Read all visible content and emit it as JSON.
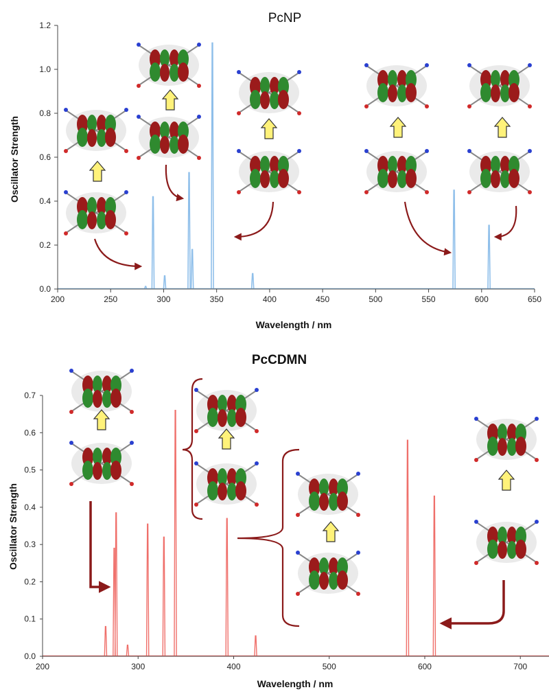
{
  "chart_data": [
    {
      "type": "line",
      "title": "PcNP",
      "xlabel": "Wavelength / nm",
      "ylabel": "Oscillator Strength",
      "xlim": [
        200,
        650
      ],
      "ylim": [
        0,
        1.2
      ],
      "xticks": [
        200,
        250,
        300,
        350,
        400,
        450,
        500,
        550,
        600,
        650
      ],
      "yticks": [
        0.0,
        0.2,
        0.4,
        0.6,
        0.8,
        1.0,
        1.2
      ],
      "yticks_labels": [
        "0.0",
        "0.2",
        "0.4",
        "0.6",
        "0.8",
        "1.0",
        "1.2"
      ],
      "grid": false,
      "color": "#8fbfea",
      "peaks": [
        {
          "x": 283,
          "y": 0.012
        },
        {
          "x": 290,
          "y": 0.42
        },
        {
          "x": 301,
          "y": 0.06
        },
        {
          "x": 324,
          "y": 0.53
        },
        {
          "x": 327,
          "y": 0.18
        },
        {
          "x": 346,
          "y": 1.12
        },
        {
          "x": 384,
          "y": 0.07
        },
        {
          "x": 574,
          "y": 0.45
        },
        {
          "x": 607,
          "y": 0.29
        }
      ],
      "annotations": [
        {
          "type": "orbital-pair",
          "target_x": 290
        },
        {
          "type": "orbital-pair",
          "target_x": 324
        },
        {
          "type": "orbital-pair",
          "target_x": 346
        },
        {
          "type": "orbital-pair",
          "target_x": 574
        },
        {
          "type": "orbital-pair",
          "target_x": 607
        }
      ]
    },
    {
      "type": "line",
      "title": "PcCDMN",
      "xlabel": "Wavelength / nm",
      "ylabel": "Oscillator Strength",
      "xlim": [
        200,
        730
      ],
      "ylim": [
        0,
        0.7
      ],
      "xticks": [
        200,
        300,
        400,
        500,
        600,
        700
      ],
      "yticks": [
        0.0,
        0.1,
        0.2,
        0.3,
        0.4,
        0.5,
        0.6,
        0.7
      ],
      "yticks_labels": [
        "0.0",
        "0.1",
        "0.2",
        "0.3",
        "0.4",
        "0.5",
        "0.6",
        "0.7"
      ],
      "grid": false,
      "color": "#ef6f6a",
      "peaks": [
        {
          "x": 266,
          "y": 0.08
        },
        {
          "x": 275,
          "y": 0.29
        },
        {
          "x": 277,
          "y": 0.385
        },
        {
          "x": 289,
          "y": 0.03
        },
        {
          "x": 310,
          "y": 0.355
        },
        {
          "x": 327,
          "y": 0.32
        },
        {
          "x": 339,
          "y": 0.66
        },
        {
          "x": 393,
          "y": 0.37
        },
        {
          "x": 423,
          "y": 0.055
        },
        {
          "x": 582,
          "y": 0.58
        },
        {
          "x": 610,
          "y": 0.43
        }
      ],
      "annotations": [
        {
          "type": "orbital-pair",
          "target_x": 277
        },
        {
          "type": "orbital-pair",
          "target_x": 339
        },
        {
          "type": "orbital-pair",
          "target_x": 393
        },
        {
          "type": "orbital-pair",
          "target_x": 610
        }
      ]
    }
  ]
}
